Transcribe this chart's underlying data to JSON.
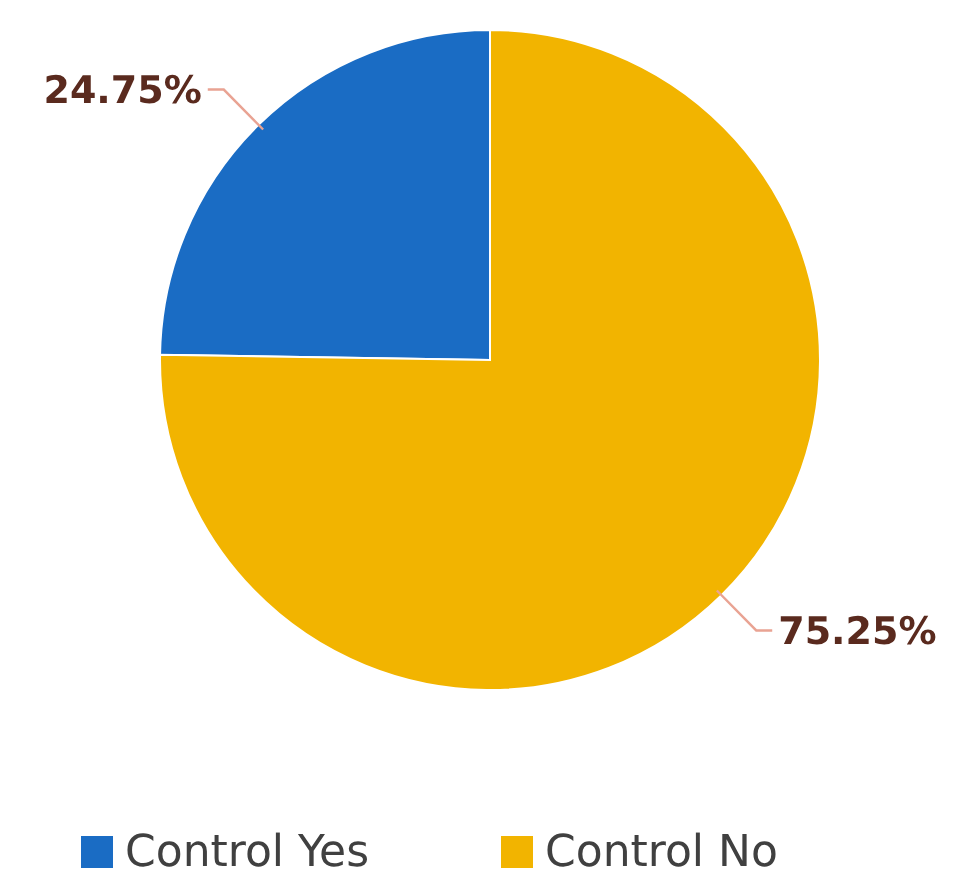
{
  "chart_data": {
    "type": "pie",
    "categories": [
      "Control Yes",
      "Control No"
    ],
    "values": [
      24.75,
      75.25
    ],
    "colors": [
      "#1a6cc4",
      "#f2b400"
    ],
    "value_labels": [
      "24.75%",
      "75.25%"
    ],
    "legend": "bottom"
  }
}
